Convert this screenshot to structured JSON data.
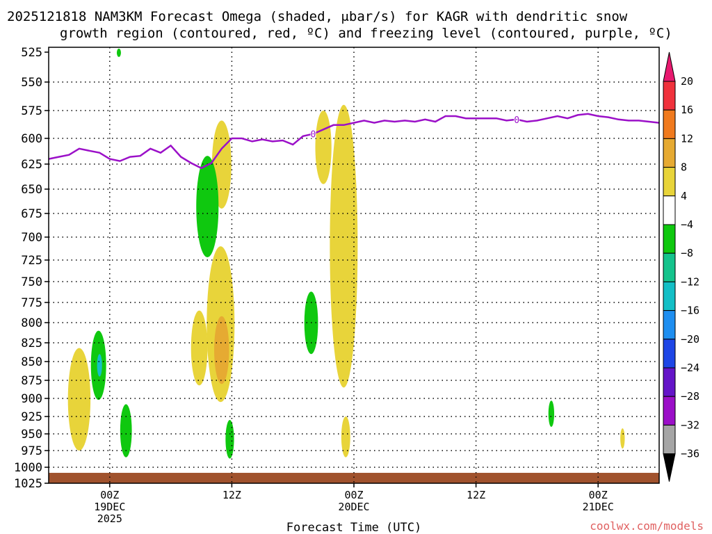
{
  "chart_data": {
    "type": "heatmap",
    "title": "2025121818 NAM3KM Forecast Omega (shaded, μbar/s) for KAGR with dendritic snow",
    "subtitle": "growth region (contoured, red, ºC) and freezing level (contoured, purple, ºC)",
    "xlabel": "Forecast Time (UTC)",
    "ylabel": "",
    "x_unit": "hours since 2025-12-18 18Z",
    "xlim": [
      0,
      60
    ],
    "ylim": [
      1025,
      525
    ],
    "y_ticks": [
      525,
      550,
      575,
      600,
      625,
      650,
      675,
      700,
      725,
      750,
      775,
      800,
      825,
      850,
      875,
      900,
      925,
      950,
      975,
      1000,
      1025
    ],
    "x_ticks": [
      {
        "hour": 6,
        "lines": [
          "00Z",
          "19DEC",
          "2025"
        ]
      },
      {
        "hour": 18,
        "lines": [
          "12Z"
        ]
      },
      {
        "hour": 30,
        "lines": [
          "00Z",
          "20DEC"
        ]
      },
      {
        "hour": 42,
        "lines": [
          "12Z"
        ]
      },
      {
        "hour": 54,
        "lines": [
          "00Z",
          "21DEC"
        ]
      }
    ],
    "grid": true,
    "colorbar": {
      "levels": [
        "20",
        "16",
        "12",
        "8",
        "4",
        "−4",
        "−8",
        "−12",
        "−16",
        "−20",
        "−24",
        "−28",
        "−32",
        "−36"
      ],
      "colors": [
        "#e8196f",
        "#f0323c",
        "#f07a1e",
        "#e6aa32",
        "#e8d43a",
        "#ffffff",
        "#0fc80f",
        "#14c38c",
        "#13bfc6",
        "#1e8ef0",
        "#1e46e6",
        "#6414c8",
        "#9b0fc8",
        "#a5a5a5",
        "#000000"
      ]
    },
    "freezing_level": {
      "label": "0",
      "color": "#9b10c8",
      "hours": [
        0,
        1,
        2,
        3,
        4,
        5,
        6,
        7,
        8,
        9,
        10,
        11,
        12,
        13,
        14,
        15,
        16,
        17,
        18,
        19,
        20,
        21,
        22,
        23,
        24,
        25,
        26,
        27,
        28,
        29,
        30,
        31,
        32,
        33,
        34,
        35,
        36,
        37,
        38,
        39,
        40,
        41,
        42,
        43,
        44,
        45,
        46,
        47,
        48,
        49,
        50,
        51,
        52,
        53,
        54,
        55,
        56,
        57,
        58,
        59,
        60
      ],
      "pressure": [
        620,
        618,
        616,
        610,
        612,
        614,
        620,
        622,
        618,
        617,
        610,
        614,
        607,
        618,
        624,
        629,
        624,
        610,
        600,
        600,
        603,
        601,
        603,
        602,
        606,
        598,
        596,
        592,
        588,
        588,
        586,
        584,
        586,
        584,
        585,
        584,
        585,
        583,
        585,
        580,
        580,
        582,
        582,
        582,
        582,
        584,
        583,
        585,
        584,
        582,
        580,
        582,
        579,
        578,
        580,
        581,
        583,
        584,
        584,
        585,
        586
      ]
    },
    "shaded_regions": [
      {
        "value": -6,
        "hour": 6.9,
        "top": 522,
        "bottom": 529
      },
      {
        "value": 6,
        "hour": 17.0,
        "top": 584,
        "bottom": 670
      },
      {
        "value": 6,
        "hour": 27.0,
        "top": 575,
        "bottom": 645
      },
      {
        "value": -6,
        "hour": 15.6,
        "top": 617,
        "bottom": 722
      },
      {
        "value": 6,
        "hour": 16.9,
        "top": 710,
        "bottom": 905
      },
      {
        "value": 10,
        "hour": 17.0,
        "top": 792,
        "bottom": 880
      },
      {
        "value": 6,
        "hour": 14.8,
        "top": 785,
        "bottom": 882
      },
      {
        "value": 6,
        "hour": 29.0,
        "top": 570,
        "bottom": 885
      },
      {
        "value": -6,
        "hour": 25.8,
        "top": 762,
        "bottom": 840
      },
      {
        "value": -6,
        "hour": 4.9,
        "top": 810,
        "bottom": 902
      },
      {
        "value": -14,
        "hour": 5.0,
        "top": 840,
        "bottom": 870
      },
      {
        "value": 6,
        "hour": 3.0,
        "top": 832,
        "bottom": 975
      },
      {
        "value": -6,
        "hour": 7.6,
        "top": 908,
        "bottom": 985
      },
      {
        "value": -6,
        "hour": 17.8,
        "top": 930,
        "bottom": 987
      },
      {
        "value": 6,
        "hour": 29.2,
        "top": 925,
        "bottom": 985
      },
      {
        "value": -6,
        "hour": 49.4,
        "top": 903,
        "bottom": 940
      },
      {
        "value": 6,
        "hour": 56.4,
        "top": 942,
        "bottom": 972
      }
    ],
    "terrain": {
      "color": "#a0522d",
      "pressure": 1012
    }
  },
  "credit": "coolwx.com/models"
}
